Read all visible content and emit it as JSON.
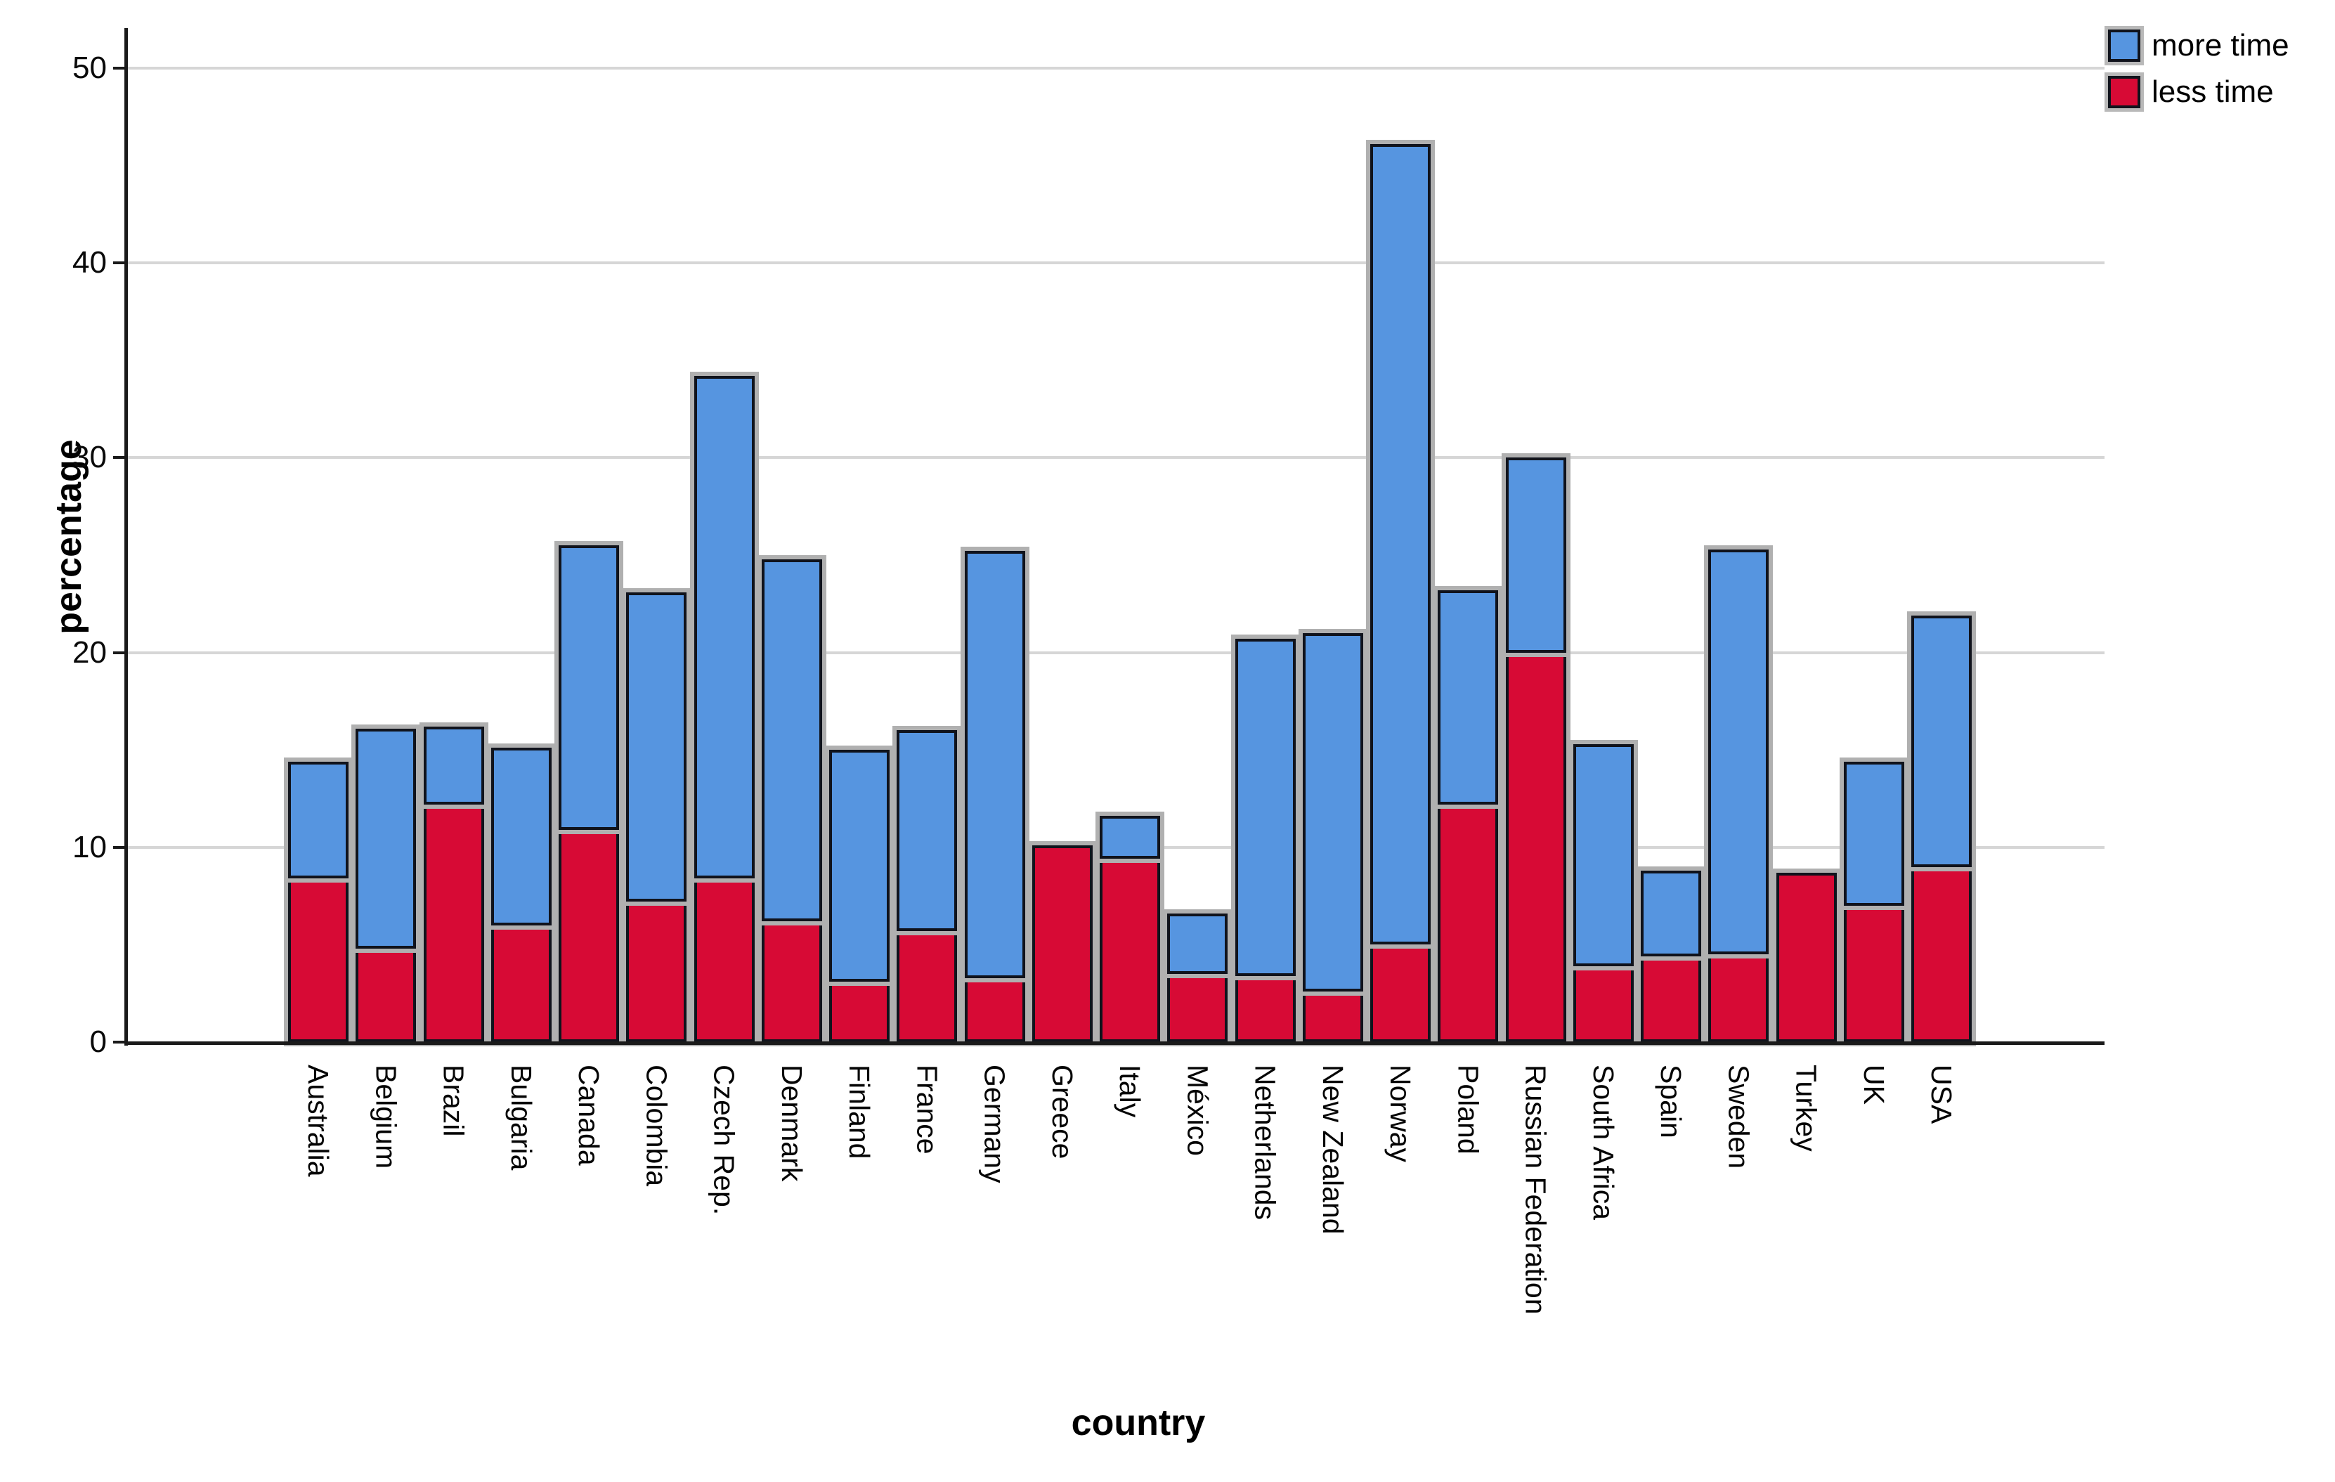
{
  "chart_data": {
    "type": "bar",
    "stacked": true,
    "xlabel": "country",
    "ylabel": "percentage",
    "ylim": [
      0,
      52
    ],
    "yticks": [
      0,
      10,
      20,
      30,
      40,
      50
    ],
    "grid": "horizontal",
    "legend_position": "top-right",
    "categories": [
      "Australia",
      "Belgium",
      "Brazil",
      "Bulgaria",
      "Canada",
      "Colombia",
      "Czech Rep.",
      "Denmark",
      "Finland",
      "France",
      "Germany",
      "Greece",
      "Italy",
      "México",
      "Netherlands",
      "New Zealand",
      "Norway",
      "Poland",
      "Russian Federation",
      "South Africa",
      "Spain",
      "Sweden",
      "Turkey",
      "UK",
      "USA"
    ],
    "stack_order_bottom_to_top": [
      "less time",
      "more time"
    ],
    "series": [
      {
        "name": "more time",
        "color": "#5695e0",
        "values": [
          6.0,
          11.3,
          4.0,
          9.1,
          14.6,
          15.9,
          25.8,
          18.6,
          11.9,
          10.3,
          21.9,
          0,
          2.2,
          3.1,
          17.3,
          18.4,
          41.1,
          11.0,
          10.0,
          11.4,
          4.4,
          20.8,
          0,
          7.4,
          12.9
        ]
      },
      {
        "name": "less time",
        "color": "#d70a35",
        "values": [
          8.4,
          4.8,
          12.2,
          6.0,
          10.9,
          7.2,
          8.4,
          6.2,
          3.1,
          5.7,
          3.3,
          10.1,
          9.4,
          3.5,
          3.4,
          2.6,
          5.0,
          12.2,
          20.0,
          3.9,
          4.4,
          4.5,
          8.7,
          7.0,
          9.0
        ]
      }
    ],
    "totals": [
      14.4,
      16.1,
      16.2,
      15.1,
      25.5,
      23.1,
      34.2,
      24.8,
      15.0,
      16.0,
      25.2,
      10.1,
      11.6,
      6.6,
      20.7,
      21.0,
      46.1,
      23.2,
      30.0,
      15.3,
      8.8,
      25.3,
      8.7,
      14.4,
      21.9
    ]
  },
  "colors": {
    "more_time": "#5695e0",
    "less_time": "#d70a35",
    "bar_border": "#10131c",
    "bar_halo": "#b0b0b0",
    "gridline": "#d6d6d6",
    "axis": "#1a1a1a"
  }
}
